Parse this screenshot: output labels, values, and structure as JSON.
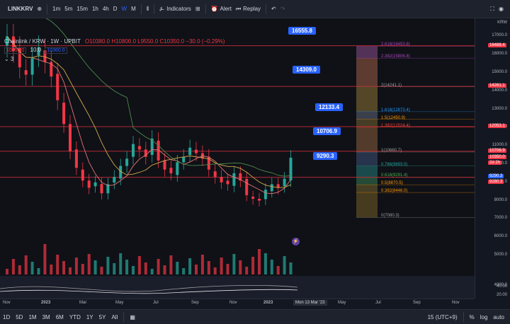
{
  "app": {
    "logo": "LINKKRV",
    "intervals": [
      "1m",
      "5m",
      "15m",
      "1h",
      "4h",
      "D",
      "W",
      "M"
    ],
    "active_interval": "W",
    "indicators_label": "Indicators",
    "alert_label": "Alert",
    "replay_label": "Replay"
  },
  "legend": {
    "title": "Chainlink / KRW · 1W · UPBIT",
    "ohlc": "O10380.0 H10800.0 L9550.0 C10350.0 −30.0 (−0.29%)",
    "price_red": "10350.0",
    "spread": "10.0",
    "price_blue": "10360.0",
    "indicator_count": "3"
  },
  "price_labels": [
    "16555.8",
    "14309.0",
    "12133.4",
    "10706.9",
    "9290.3"
  ],
  "fib_levels": [
    {
      "label": "2.618(16453.8)",
      "color": "#ab47bc"
    },
    {
      "label": "2.382(15806.8)",
      "color": "#ab47bc"
    },
    {
      "label": "2(14241.1)",
      "color": "#9e9e9e"
    },
    {
      "label": "1.618(12873.4)",
      "color": "#2196f3"
    },
    {
      "label": "1.5(12450.9)",
      "color": "#ff9800"
    },
    {
      "label": "1.382(12024.4)",
      "color": "#f44336"
    },
    {
      "label": "1(10660.7)",
      "color": "#9e9e9e"
    },
    {
      "label": "0.786(9893.5)",
      "color": "#26a69a"
    },
    {
      "label": "0.618(9291.4)",
      "color": "#4caf50"
    },
    {
      "label": "0.5(8870.5)",
      "color": "#ff9800"
    },
    {
      "label": "0.382(8446.0)",
      "color": "#ff9800"
    },
    {
      "label": "0(7080.3)",
      "color": "#9e9e9e"
    }
  ],
  "price_scale": {
    "currency": "KRW",
    "ticks": [
      "17000.0",
      "16000.0",
      "15000.0",
      "14000.0",
      "13000.0",
      "12000.0",
      "11000.0",
      "10000.0",
      "9000.0",
      "8000.0",
      "7000.0",
      "6000.0",
      "5000.0",
      "4000.0"
    ],
    "tags": [
      {
        "text": "16488.4",
        "color": "#f23645"
      },
      {
        "text": "14261.1",
        "color": "#f23645"
      },
      {
        "text": "12053.1",
        "color": "#f23645"
      },
      {
        "text": "10706.9",
        "color": "#f23645"
      },
      {
        "text": "10350.0",
        "color": "#f23645"
      },
      {
        "text": "2d 2h",
        "color": "#f23645"
      },
      {
        "text": "9290.3",
        "color": "#2962ff"
      },
      {
        "text": "9280.3",
        "color": "#f23645"
      }
    ],
    "osc_ticks": [
      "40.00",
      "20.00"
    ]
  },
  "time_axis": [
    "Nov",
    "2023",
    "Mar",
    "May",
    "Jul",
    "Sep",
    "Nov",
    "2023",
    "Mar",
    "May",
    "Jul",
    "Sep",
    "Nov"
  ],
  "crosshair_date": "Mon 13 Mar '23",
  "ranges": [
    "1D",
    "5D",
    "1M",
    "3M",
    "6M",
    "YTD",
    "1Y",
    "5Y",
    "All"
  ],
  "timezone": "15 (UTC+9)",
  "scale_options": [
    "%",
    "log",
    "auto"
  ],
  "colors": {
    "up": "#26a69a",
    "down": "#f23645",
    "accent": "#2962ff"
  }
}
